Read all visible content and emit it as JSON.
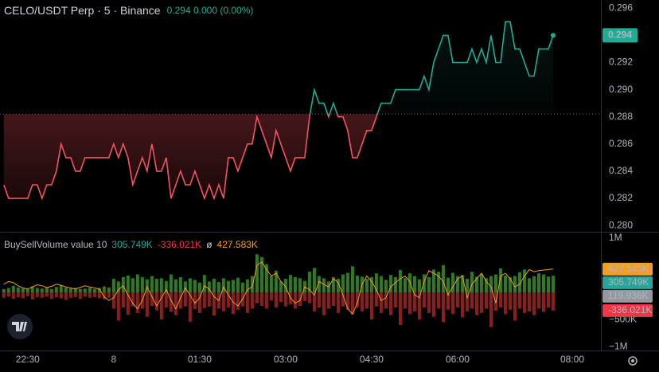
{
  "chart_data": [
    {
      "type": "baseline",
      "title": "CELO/USDT Perp · 5 · Binance",
      "quote": "0.294 0.000 (0.00%)",
      "baseline": 0.2882,
      "values": [
        0.283,
        0.282,
        0.282,
        0.282,
        0.282,
        0.282,
        0.283,
        0.283,
        0.282,
        0.283,
        0.283,
        0.284,
        0.286,
        0.285,
        0.285,
        0.284,
        0.284,
        0.285,
        0.285,
        0.285,
        0.285,
        0.285,
        0.285,
        0.286,
        0.285,
        0.286,
        0.285,
        0.283,
        0.284,
        0.285,
        0.284,
        0.286,
        0.284,
        0.284,
        0.285,
        0.282,
        0.283,
        0.284,
        0.283,
        0.283,
        0.284,
        0.283,
        0.282,
        0.283,
        0.282,
        0.283,
        0.282,
        0.285,
        0.285,
        0.284,
        0.285,
        0.286,
        0.286,
        0.288,
        0.287,
        0.286,
        0.285,
        0.287,
        0.286,
        0.285,
        0.284,
        0.285,
        0.285,
        0.285,
        0.288,
        0.29,
        0.289,
        0.289,
        0.288,
        0.289,
        0.288,
        0.288,
        0.287,
        0.285,
        0.285,
        0.286,
        0.287,
        0.287,
        0.288,
        0.289,
        0.289,
        0.289,
        0.29,
        0.29,
        0.29,
        0.29,
        0.29,
        0.29,
        0.291,
        0.29,
        0.292,
        0.293,
        0.294,
        0.294,
        0.292,
        0.292,
        0.292,
        0.292,
        0.293,
        0.292,
        0.293,
        0.292,
        0.294,
        0.292,
        0.292,
        0.295,
        0.295,
        0.293,
        0.293,
        0.292,
        0.291,
        0.291,
        0.293,
        0.293,
        0.293,
        0.294
      ],
      "last_label": "0.294",
      "colors": {
        "up": "#22ab94",
        "down": "#f7525f"
      },
      "ylim": [
        0.2796,
        0.2966
      ],
      "yticks": [
        {
          "value": 0.28,
          "label": "0.280"
        },
        {
          "value": 0.282,
          "label": "0.282"
        },
        {
          "value": 0.284,
          "label": "0.284"
        },
        {
          "value": 0.286,
          "label": "0.286"
        },
        {
          "value": 0.288,
          "label": "0.288"
        },
        {
          "value": 0.29,
          "label": "0.290"
        },
        {
          "value": 0.292,
          "label": "0.292"
        },
        {
          "value": 0.296,
          "label": "0.296"
        }
      ],
      "xlim": [
        -0.8,
        125
      ],
      "xticks": [
        {
          "value": 5,
          "label": "22:30"
        },
        {
          "value": 23,
          "label": "8"
        },
        {
          "value": 41,
          "label": "01:30"
        },
        {
          "value": 59,
          "label": "03:00"
        },
        {
          "value": 77,
          "label": "04:30"
        },
        {
          "value": 95,
          "label": "06:00"
        },
        {
          "value": 119,
          "label": "08:00"
        }
      ]
    },
    {
      "type": "volume",
      "title": "BuySellVolume value 10",
      "symbol": "ø",
      "series": [
        {
          "type": "bar",
          "color": "#2f7a22",
          "label_color": "#26a69a",
          "last_label": "305.749K",
          "values": [
            60,
            80,
            120,
            90,
            70,
            60,
            110,
            80,
            70,
            90,
            60,
            100,
            130,
            90,
            70,
            80,
            60,
            70,
            90,
            60,
            80,
            110,
            90,
            250,
            200,
            280,
            310,
            260,
            330,
            280,
            240,
            300,
            250,
            260,
            210,
            330,
            240,
            280,
            200,
            260,
            230,
            180,
            320,
            200,
            250,
            190,
            260,
            210,
            230,
            270,
            180,
            240,
            300,
            700,
            650,
            520,
            300,
            400,
            200,
            250,
            320,
            280,
            260,
            210,
            380,
            450,
            300,
            260,
            200,
            280,
            250,
            330,
            360,
            480,
            310,
            290,
            250,
            280,
            350,
            300,
            230,
            320,
            280,
            410,
            260,
            350,
            300,
            240,
            330,
            280,
            420,
            380,
            500,
            270,
            360,
            300,
            320,
            250,
            380,
            290,
            340,
            260,
            300,
            330,
            440,
            310,
            280,
            300,
            370,
            420,
            260,
            300,
            350,
            330,
            290,
            305.749
          ]
        },
        {
          "type": "bar",
          "color": "#8f1d1d",
          "label_color": "#f23645",
          "last_label": "-336.021K",
          "values": [
            -100,
            -80,
            -120,
            -90,
            -110,
            -70,
            -130,
            -90,
            -100,
            -80,
            -120,
            -90,
            -110,
            -140,
            -100,
            -90,
            -120,
            -80,
            -100,
            -90,
            -110,
            -130,
            -100,
            -300,
            -520,
            -280,
            -410,
            -260,
            -380,
            -300,
            -450,
            -250,
            -330,
            -500,
            -280,
            -360,
            -420,
            -300,
            -260,
            -540,
            -310,
            -380,
            -290,
            -260,
            -430,
            -300,
            -350,
            -280,
            -400,
            -320,
            -260,
            -380,
            -300,
            -200,
            -250,
            -300,
            -150,
            -280,
            -180,
            -260,
            -220,
            -300,
            -250,
            -160,
            -200,
            -350,
            -280,
            -420,
            -300,
            -250,
            -380,
            -260,
            -320,
            -400,
            -280,
            -350,
            -300,
            -500,
            -260,
            -380,
            -300,
            -420,
            -280,
            -600,
            -300,
            -400,
            -350,
            -500,
            -280,
            -380,
            -450,
            -300,
            -550,
            -320,
            -400,
            -280,
            -460,
            -350,
            -300,
            -420,
            -380,
            -300,
            -640,
            -340,
            -280,
            -400,
            -320,
            -520,
            -300,
            -380,
            -350,
            -420,
            -300,
            -360,
            -280,
            -336.021
          ]
        },
        {
          "type": "line",
          "color": "#f59d1f",
          "label_color": "#f59d1f",
          "last_label": "427.583K",
          "values": [
            150,
            200,
            180,
            120,
            80,
            60,
            100,
            140,
            120,
            90,
            110,
            150,
            130,
            100,
            80,
            60,
            90,
            120,
            100,
            80,
            60,
            -80,
            -150,
            -100,
            50,
            120,
            -50,
            -200,
            -300,
            -150,
            100,
            -80,
            -250,
            -100,
            50,
            -150,
            -300,
            -100,
            80,
            -50,
            -200,
            -100,
            120,
            60,
            -80,
            -150,
            100,
            -50,
            -180,
            -250,
            -120,
            50,
            100,
            500,
            560,
            420,
            300,
            350,
            200,
            100,
            -100,
            -200,
            -150,
            100,
            50,
            -50,
            200,
            150,
            100,
            250,
            180,
            -50,
            -300,
            -400,
            -200,
            150,
            300,
            200,
            50,
            -150,
            -100,
            100,
            180,
            250,
            300,
            200,
            -50,
            -100,
            200,
            400,
            350,
            300,
            200,
            -50,
            100,
            250,
            300,
            -100,
            150,
            250,
            350,
            200,
            100,
            -200,
            300,
            350,
            250,
            100,
            150,
            300,
            420,
            380,
            400,
            410,
            420,
            427.583
          ]
        }
      ],
      "extra": {
        "value": 119.936,
        "label": "119.936K",
        "color": "#9598a1"
      },
      "ylim": [
        -1100,
        1100
      ],
      "yticks": [
        {
          "value": 1000,
          "label": "1M"
        },
        {
          "value": -500,
          "label": "−500K"
        },
        {
          "value": -1000,
          "label": "−1M"
        }
      ]
    }
  ]
}
